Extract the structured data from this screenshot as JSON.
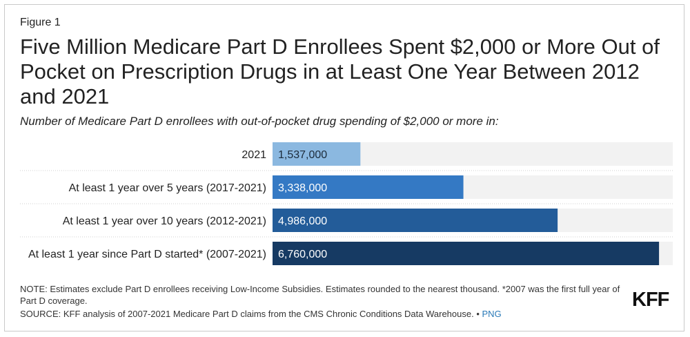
{
  "figure_label": "Figure 1",
  "logo": "KFF",
  "note": "NOTE: Estimates exclude Part D enrollees receiving Low-Income Subsidies. Estimates rounded to the nearest thousand. *2007 was the first full year of Part D coverage.",
  "source": {
    "text": "SOURCE: KFF analysis of 2007-2021 Medicare Part D claims from the CMS Chronic Conditions Data Warehouse. •",
    "link": "PNG"
  },
  "chart_data": {
    "type": "bar",
    "orientation": "horizontal",
    "title": "Five Million Medicare Part D Enrollees Spent $2,000 or More Out of Pocket on Prescription Drugs in at Least One Year Between 2012 and 2021",
    "subtitle": "Number of Medicare Part D enrollees with out-of-pocket drug spending of $2,000 or more in:",
    "categories": [
      "2021",
      "At least 1 year over 5 years (2017-2021)",
      "At least 1 year over 10 years (2012-2021)",
      "At least 1 year since Part D started* (2007-2021)"
    ],
    "values": [
      1537000,
      3338000,
      4986000,
      6760000
    ],
    "value_labels": [
      "1,537,000",
      "3,338,000",
      "4,986,000",
      "6,760,000"
    ],
    "colors": [
      "#8bb8e0",
      "#3479c4",
      "#235c99",
      "#163a63"
    ],
    "track_color": "#f2f2f2",
    "xlim": [
      0,
      7000000
    ],
    "xlabel": "",
    "ylabel": ""
  }
}
